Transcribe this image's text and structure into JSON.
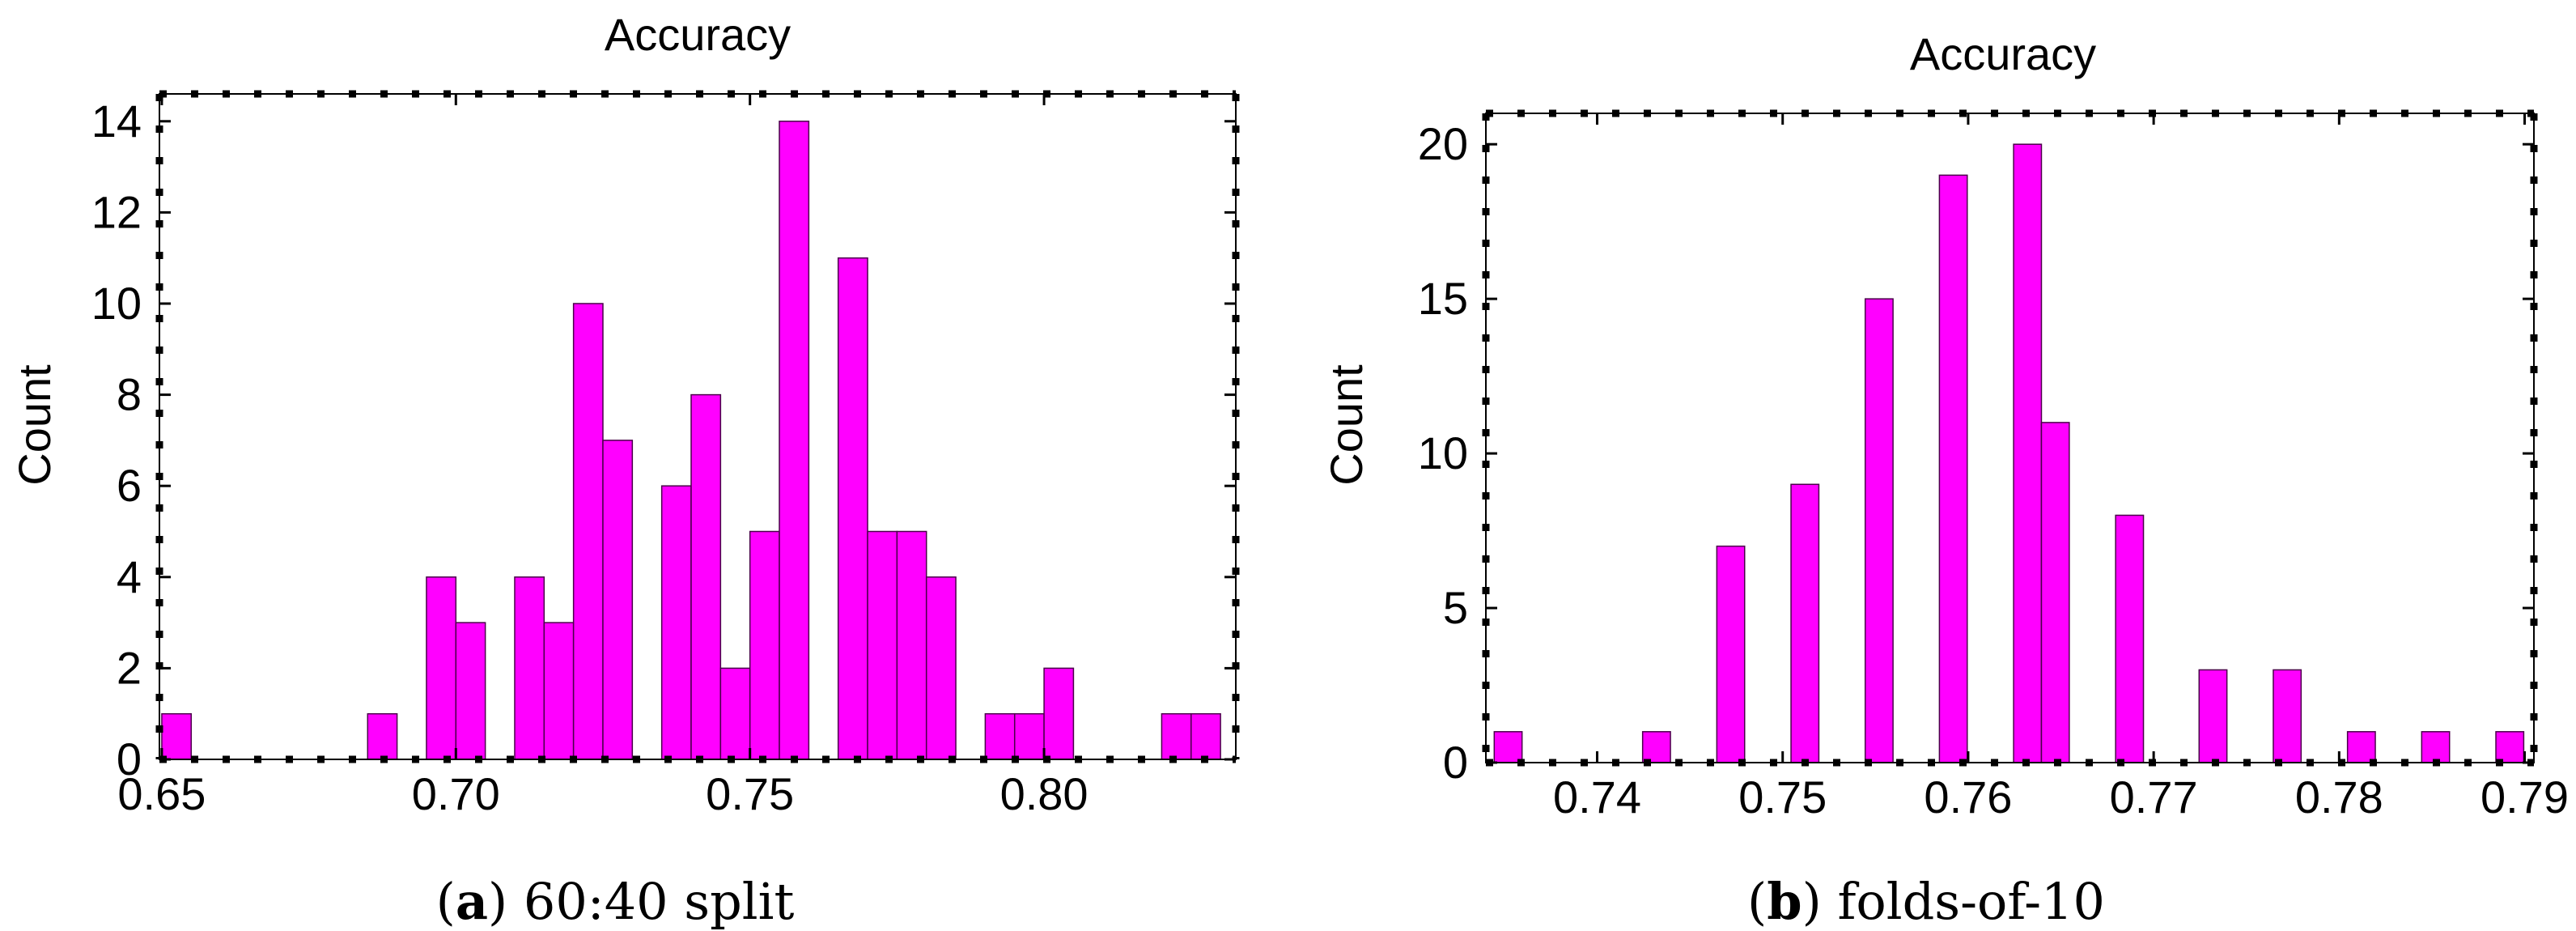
{
  "colors": {
    "bar_fill": "#ff00ff",
    "bar_stroke": "#4a004a",
    "frame": "#000000",
    "frame_dash": "#000000"
  },
  "chart_data": [
    {
      "type": "bar",
      "title": "Accuracy",
      "xlabel": "",
      "ylabel": "Count",
      "xlim": [
        0.6496,
        0.8326
      ],
      "ylim": [
        0,
        14.6
      ],
      "bin_width": 0.005,
      "xticks": [
        "0.65",
        "0.70",
        "0.75",
        "0.80"
      ],
      "xtick_values": [
        0.65,
        0.7,
        0.75,
        0.8
      ],
      "yticks": [
        "0",
        "2",
        "4",
        "6",
        "8",
        "10",
        "12",
        "14"
      ],
      "ytick_values": [
        0,
        2,
        4,
        6,
        8,
        10,
        12,
        14
      ],
      "bins": [
        {
          "x": 0.6525,
          "count": 1
        },
        {
          "x": 0.6875,
          "count": 1
        },
        {
          "x": 0.6975,
          "count": 4
        },
        {
          "x": 0.7025,
          "count": 3
        },
        {
          "x": 0.7125,
          "count": 4
        },
        {
          "x": 0.7175,
          "count": 3
        },
        {
          "x": 0.7225,
          "count": 10
        },
        {
          "x": 0.7275,
          "count": 7
        },
        {
          "x": 0.7375,
          "count": 6
        },
        {
          "x": 0.7425,
          "count": 8
        },
        {
          "x": 0.7475,
          "count": 2
        },
        {
          "x": 0.7525,
          "count": 5
        },
        {
          "x": 0.7575,
          "count": 14
        },
        {
          "x": 0.7675,
          "count": 11
        },
        {
          "x": 0.7725,
          "count": 5
        },
        {
          "x": 0.7775,
          "count": 5
        },
        {
          "x": 0.7825,
          "count": 4
        },
        {
          "x": 0.7925,
          "count": 1
        },
        {
          "x": 0.7975,
          "count": 1
        },
        {
          "x": 0.8025,
          "count": 2
        },
        {
          "x": 0.8225,
          "count": 1
        },
        {
          "x": 0.8275,
          "count": 1
        }
      ],
      "caption_label": "a",
      "caption_text": " 60:40 split"
    },
    {
      "type": "bar",
      "title": "Accuracy",
      "xlabel": "",
      "ylabel": "Count",
      "xlim": [
        0.734,
        0.7905
      ],
      "ylim": [
        0,
        21
      ],
      "bin_width": 0.0015,
      "xticks": [
        "0.74",
        "0.75",
        "0.76",
        "0.77",
        "0.78",
        "0.79"
      ],
      "xtick_values": [
        0.74,
        0.75,
        0.76,
        0.77,
        0.78,
        0.79
      ],
      "yticks": [
        "0",
        "5",
        "10",
        "15",
        "20"
      ],
      "ytick_values": [
        0,
        5,
        10,
        15,
        20
      ],
      "bins": [
        {
          "x": 0.7352,
          "count": 1
        },
        {
          "x": 0.7432,
          "count": 1
        },
        {
          "x": 0.7472,
          "count": 7
        },
        {
          "x": 0.7512,
          "count": 9
        },
        {
          "x": 0.7552,
          "count": 15
        },
        {
          "x": 0.7592,
          "count": 19
        },
        {
          "x": 0.7632,
          "count": 20
        },
        {
          "x": 0.7647,
          "count": 11
        },
        {
          "x": 0.7687,
          "count": 8
        },
        {
          "x": 0.7732,
          "count": 3
        },
        {
          "x": 0.7772,
          "count": 3
        },
        {
          "x": 0.7812,
          "count": 1
        },
        {
          "x": 0.7852,
          "count": 1
        },
        {
          "x": 0.7892,
          "count": 1
        }
      ],
      "caption_label": "b",
      "caption_text": " folds-of-10"
    }
  ]
}
